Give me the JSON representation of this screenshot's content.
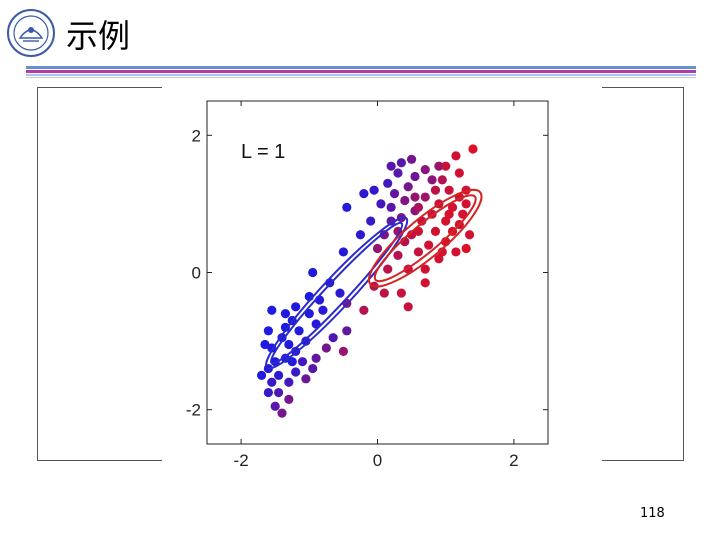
{
  "slide": {
    "title": "示例",
    "page_number": "118"
  },
  "colors": {
    "rule_blue": "#6b8fd0",
    "rule_magenta": "#b23ca8",
    "cluster_blue": "#1a1ae6",
    "cluster_red": "#e6101e"
  },
  "icons": {
    "logo": "university-seal-icon"
  },
  "chart_data": {
    "type": "scatter",
    "title": "",
    "annotation": "L = 1",
    "xlabel": "",
    "ylabel": "",
    "xlim": [
      -2.5,
      2.5
    ],
    "ylim": [
      -2.5,
      2.5
    ],
    "xticks": [
      -2,
      0,
      2
    ],
    "yticks": [
      -2,
      0,
      2
    ],
    "xtick_labels": [
      "-2",
      "0",
      "2"
    ],
    "ytick_labels": [
      "-2",
      "0",
      "2"
    ],
    "grid": false,
    "color_encoding": "blue-to-red gradient (responsibility)",
    "ellipses": [
      {
        "name": "",
        "color": "#2a2acc",
        "center": [
          -0.6,
          -0.3
        ],
        "semi_axes": [
          1.4,
          0.16
        ],
        "angle_deg": 47
      },
      {
        "name": "",
        "color": "#2a2acc",
        "center": [
          -0.6,
          -0.3
        ],
        "semi_axes": [
          1.5,
          0.22
        ],
        "angle_deg": 47
      },
      {
        "name": "",
        "color": "#d42424",
        "center": [
          0.7,
          0.5
        ],
        "semi_axes": [
          0.95,
          0.2
        ],
        "angle_deg": 40
      },
      {
        "name": "",
        "color": "#d42424",
        "center": [
          0.7,
          0.5
        ],
        "semi_axes": [
          1.05,
          0.28
        ],
        "angle_deg": 40
      }
    ],
    "points": [
      {
        "x": 1.4,
        "y": 1.8,
        "r": 0.95
      },
      {
        "x": 1.15,
        "y": 1.7,
        "r": 0.9
      },
      {
        "x": 1.2,
        "y": 1.45,
        "r": 0.9
      },
      {
        "x": 0.9,
        "y": 1.55,
        "r": 0.6
      },
      {
        "x": 0.8,
        "y": 1.35,
        "r": 0.55
      },
      {
        "x": 0.5,
        "y": 1.65,
        "r": 0.45
      },
      {
        "x": 0.55,
        "y": 1.4,
        "r": 0.4
      },
      {
        "x": 0.35,
        "y": 1.6,
        "r": 0.3
      },
      {
        "x": 0.3,
        "y": 1.45,
        "r": 0.3
      },
      {
        "x": 0.45,
        "y": 1.25,
        "r": 0.45
      },
      {
        "x": 0.15,
        "y": 1.3,
        "r": 0.2
      },
      {
        "x": -0.05,
        "y": 1.2,
        "r": 0.12
      },
      {
        "x": -0.2,
        "y": 1.15,
        "r": 0.1
      },
      {
        "x": -0.45,
        "y": 0.95,
        "r": 0.05
      },
      {
        "x": 0.05,
        "y": 1.0,
        "r": 0.2
      },
      {
        "x": 0.2,
        "y": 0.95,
        "r": 0.3
      },
      {
        "x": 0.2,
        "y": 0.75,
        "r": 0.35
      },
      {
        "x": 0.35,
        "y": 0.8,
        "r": 0.45
      },
      {
        "x": 0.55,
        "y": 0.9,
        "r": 0.55
      },
      {
        "x": 0.7,
        "y": 1.1,
        "r": 0.65
      },
      {
        "x": 0.9,
        "y": 1.0,
        "r": 0.85
      },
      {
        "x": 1.05,
        "y": 1.2,
        "r": 0.85
      },
      {
        "x": 1.1,
        "y": 0.95,
        "r": 0.9
      },
      {
        "x": 1.3,
        "y": 1.0,
        "r": 0.9
      },
      {
        "x": 1.35,
        "y": 0.55,
        "r": 0.9
      },
      {
        "x": 1.2,
        "y": 0.7,
        "r": 0.9
      },
      {
        "x": 1.0,
        "y": 0.75,
        "r": 0.92
      },
      {
        "x": 0.85,
        "y": 0.6,
        "r": 0.9
      },
      {
        "x": 0.65,
        "y": 0.75,
        "r": 0.85
      },
      {
        "x": 0.5,
        "y": 0.55,
        "r": 0.8
      },
      {
        "x": 0.75,
        "y": 0.4,
        "r": 0.9
      },
      {
        "x": 1.0,
        "y": 0.45,
        "r": 0.92
      },
      {
        "x": 1.15,
        "y": 0.3,
        "r": 0.9
      },
      {
        "x": 0.9,
        "y": 0.2,
        "r": 0.9
      },
      {
        "x": 0.6,
        "y": 0.3,
        "r": 0.85
      },
      {
        "x": 0.4,
        "y": 0.45,
        "r": 0.75
      },
      {
        "x": 0.3,
        "y": 0.25,
        "r": 0.75
      },
      {
        "x": 0.15,
        "y": 0.05,
        "r": 0.8
      },
      {
        "x": 0.45,
        "y": 0.05,
        "r": 0.85
      },
      {
        "x": 0.7,
        "y": 0.05,
        "r": 0.9
      },
      {
        "x": 0.0,
        "y": 0.35,
        "r": 0.6
      },
      {
        "x": -0.05,
        "y": -0.2,
        "r": 0.75
      },
      {
        "x": 0.1,
        "y": -0.3,
        "r": 0.8
      },
      {
        "x": 0.35,
        "y": -0.3,
        "r": 0.85
      },
      {
        "x": 0.7,
        "y": -0.15,
        "r": 0.9
      },
      {
        "x": 0.45,
        "y": -0.5,
        "r": 0.85
      },
      {
        "x": -0.2,
        "y": -0.55,
        "r": 0.75
      },
      {
        "x": -0.45,
        "y": -0.45,
        "r": 0.55
      },
      {
        "x": 1.3,
        "y": 0.35,
        "r": 0.95
      },
      {
        "x": 1.05,
        "y": 0.85,
        "r": 0.92
      },
      {
        "x": 0.55,
        "y": 1.1,
        "r": 0.6
      },
      {
        "x": 0.95,
        "y": 1.35,
        "r": 0.75
      },
      {
        "x": 0.7,
        "y": 1.5,
        "r": 0.55
      },
      {
        "x": 1.3,
        "y": 1.2,
        "r": 0.9
      },
      {
        "x": 0.25,
        "y": 1.15,
        "r": 0.35
      },
      {
        "x": -0.1,
        "y": 0.75,
        "r": 0.15
      },
      {
        "x": 0.1,
        "y": 0.55,
        "r": 0.5
      },
      {
        "x": -0.5,
        "y": 0.3,
        "r": 0.05
      },
      {
        "x": -0.25,
        "y": 0.55,
        "r": 0.1
      },
      {
        "x": -0.95,
        "y": 0.0,
        "r": 0.03
      },
      {
        "x": -1.2,
        "y": -0.5,
        "r": 0.02
      },
      {
        "x": -1.0,
        "y": -0.35,
        "r": 0.03
      },
      {
        "x": -1.35,
        "y": -0.6,
        "r": 0.02
      },
      {
        "x": -1.6,
        "y": -0.85,
        "r": 0.02
      },
      {
        "x": -1.4,
        "y": -0.95,
        "r": 0.02
      },
      {
        "x": -1.55,
        "y": -1.1,
        "r": 0.03
      },
      {
        "x": -1.3,
        "y": -1.05,
        "r": 0.03
      },
      {
        "x": -1.5,
        "y": -1.3,
        "r": 0.05
      },
      {
        "x": -1.25,
        "y": -1.3,
        "r": 0.05
      },
      {
        "x": -1.05,
        "y": -1.0,
        "r": 0.05
      },
      {
        "x": -0.9,
        "y": -0.75,
        "r": 0.05
      },
      {
        "x": -0.8,
        "y": -0.55,
        "r": 0.08
      },
      {
        "x": -0.55,
        "y": -0.3,
        "r": 0.1
      },
      {
        "x": -0.7,
        "y": -0.15,
        "r": 0.08
      },
      {
        "x": -1.55,
        "y": -0.55,
        "r": 0.02
      },
      {
        "x": -1.65,
        "y": -1.05,
        "r": 0.04
      },
      {
        "x": -1.6,
        "y": -1.4,
        "r": 0.06
      },
      {
        "x": -1.55,
        "y": -1.6,
        "r": 0.15
      },
      {
        "x": -1.45,
        "y": -1.75,
        "r": 0.25
      },
      {
        "x": -1.3,
        "y": -1.6,
        "r": 0.2
      },
      {
        "x": -1.2,
        "y": -1.45,
        "r": 0.15
      },
      {
        "x": -1.1,
        "y": -1.3,
        "r": 0.2
      },
      {
        "x": -0.9,
        "y": -1.25,
        "r": 0.35
      },
      {
        "x": -0.75,
        "y": -1.1,
        "r": 0.45
      },
      {
        "x": -0.5,
        "y": -1.15,
        "r": 0.6
      },
      {
        "x": -1.05,
        "y": -1.55,
        "r": 0.4
      },
      {
        "x": -1.3,
        "y": -1.85,
        "r": 0.45
      },
      {
        "x": -1.4,
        "y": -2.05,
        "r": 0.45
      },
      {
        "x": -1.5,
        "y": -1.95,
        "r": 0.3
      },
      {
        "x": -1.6,
        "y": -1.75,
        "r": 0.15
      },
      {
        "x": -1.7,
        "y": -1.5,
        "r": 0.05
      },
      {
        "x": -1.45,
        "y": -1.5,
        "r": 0.1
      },
      {
        "x": -1.35,
        "y": -1.25,
        "r": 0.08
      },
      {
        "x": -1.2,
        "y": -1.15,
        "r": 0.1
      },
      {
        "x": -1.15,
        "y": -0.85,
        "r": 0.05
      },
      {
        "x": -1.0,
        "y": -0.6,
        "r": 0.05
      },
      {
        "x": -0.85,
        "y": -0.4,
        "r": 0.08
      },
      {
        "x": -1.35,
        "y": -0.8,
        "r": 0.02
      },
      {
        "x": -1.25,
        "y": -0.7,
        "r": 0.03
      },
      {
        "x": -0.95,
        "y": -1.4,
        "r": 0.3
      },
      {
        "x": -0.65,
        "y": -0.95,
        "r": 0.25
      },
      {
        "x": -0.45,
        "y": -0.85,
        "r": 0.35
      },
      {
        "x": 0.2,
        "y": 1.55,
        "r": 0.3
      },
      {
        "x": 0.4,
        "y": 1.05,
        "r": 0.5
      },
      {
        "x": 0.85,
        "y": 1.2,
        "r": 0.8
      },
      {
        "x": 1.0,
        "y": 1.55,
        "r": 0.85
      },
      {
        "x": 1.2,
        "y": 1.1,
        "r": 0.9
      },
      {
        "x": 1.1,
        "y": 0.6,
        "r": 0.93
      },
      {
        "x": 0.6,
        "y": 0.6,
        "r": 0.88
      },
      {
        "x": 0.3,
        "y": 0.6,
        "r": 0.65
      },
      {
        "x": 0.6,
        "y": 0.95,
        "r": 0.7
      },
      {
        "x": 0.8,
        "y": 0.85,
        "r": 0.88
      },
      {
        "x": 0.95,
        "y": 0.3,
        "r": 0.92
      },
      {
        "x": 1.25,
        "y": 0.85,
        "r": 0.92
      }
    ]
  }
}
